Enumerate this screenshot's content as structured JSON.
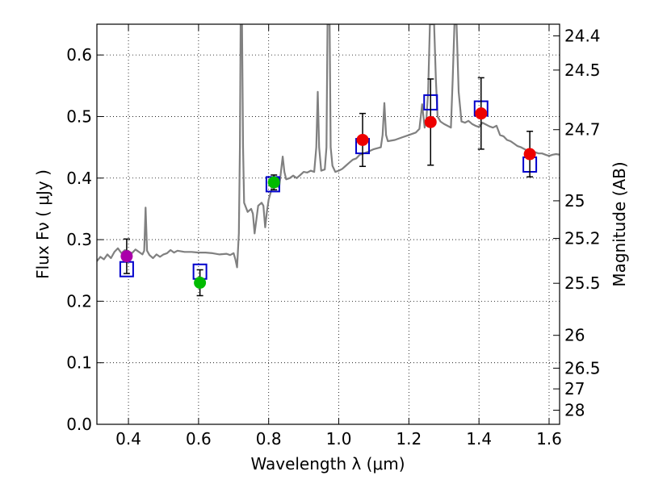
{
  "chart_data": {
    "type": "scatter",
    "xlabel": "Wavelength  λ (μm)",
    "ylabel": "Flux  Fν  ( μJy )",
    "y2label": "Magnitude (AB)",
    "xlim": [
      0.31,
      1.63
    ],
    "ylim": [
      0.0,
      0.65
    ],
    "grid": true,
    "x_ticks": [
      0.4,
      0.6,
      0.8,
      1.0,
      1.2,
      1.4,
      1.6
    ],
    "x_tick_labels": [
      "0.4",
      "0.6",
      "0.8",
      "1.0",
      "1.2",
      "1.4",
      "1.6"
    ],
    "y_ticks": [
      0.0,
      0.1,
      0.2,
      0.3,
      0.4,
      0.5,
      0.6
    ],
    "y_tick_labels": [
      "0.0",
      "0.1",
      "0.2",
      "0.3",
      "0.4",
      "0.5",
      "0.6"
    ],
    "mag_ticks": [
      24.4,
      24.5,
      24.7,
      25,
      25.2,
      25.5,
      26,
      26.5,
      27,
      28
    ],
    "mag_tick_labels": [
      "24.4",
      "24.5",
      "24.7",
      "25",
      "25.2",
      "25.5",
      "26",
      "26.5",
      "27",
      "28"
    ],
    "colors": {
      "template": "#808080",
      "model": "#0000cc",
      "purple": "#aa00aa",
      "green": "#00bb00",
      "red": "#ee0000",
      "errorbar": "#000000"
    },
    "template_spectrum": [
      [
        0.31,
        0.265
      ],
      [
        0.32,
        0.272
      ],
      [
        0.33,
        0.268
      ],
      [
        0.34,
        0.276
      ],
      [
        0.35,
        0.27
      ],
      [
        0.36,
        0.28
      ],
      [
        0.37,
        0.286
      ],
      [
        0.38,
        0.278
      ],
      [
        0.39,
        0.283
      ],
      [
        0.4,
        0.281
      ],
      [
        0.41,
        0.278
      ],
      [
        0.42,
        0.284
      ],
      [
        0.43,
        0.28
      ],
      [
        0.44,
        0.276
      ],
      [
        0.445,
        0.282
      ],
      [
        0.449,
        0.352
      ],
      [
        0.453,
        0.282
      ],
      [
        0.46,
        0.275
      ],
      [
        0.47,
        0.27
      ],
      [
        0.48,
        0.276
      ],
      [
        0.49,
        0.272
      ],
      [
        0.5,
        0.276
      ],
      [
        0.51,
        0.278
      ],
      [
        0.52,
        0.283
      ],
      [
        0.53,
        0.279
      ],
      [
        0.54,
        0.282
      ],
      [
        0.55,
        0.281
      ],
      [
        0.56,
        0.28
      ],
      [
        0.58,
        0.28
      ],
      [
        0.6,
        0.279
      ],
      [
        0.62,
        0.279
      ],
      [
        0.64,
        0.278
      ],
      [
        0.66,
        0.276
      ],
      [
        0.68,
        0.277
      ],
      [
        0.69,
        0.275
      ],
      [
        0.7,
        0.278
      ],
      [
        0.705,
        0.268
      ],
      [
        0.71,
        0.255
      ],
      [
        0.715,
        0.31
      ],
      [
        0.718,
        0.45
      ],
      [
        0.72,
        0.65
      ],
      [
        0.724,
        0.65
      ],
      [
        0.727,
        0.45
      ],
      [
        0.73,
        0.36
      ],
      [
        0.74,
        0.345
      ],
      [
        0.75,
        0.35
      ],
      [
        0.755,
        0.342
      ],
      [
        0.76,
        0.31
      ],
      [
        0.77,
        0.355
      ],
      [
        0.78,
        0.36
      ],
      [
        0.785,
        0.355
      ],
      [
        0.79,
        0.32
      ],
      [
        0.795,
        0.345
      ],
      [
        0.8,
        0.365
      ],
      [
        0.81,
        0.385
      ],
      [
        0.82,
        0.388
      ],
      [
        0.83,
        0.385
      ],
      [
        0.835,
        0.41
      ],
      [
        0.84,
        0.435
      ],
      [
        0.845,
        0.41
      ],
      [
        0.85,
        0.398
      ],
      [
        0.86,
        0.4
      ],
      [
        0.87,
        0.404
      ],
      [
        0.88,
        0.4
      ],
      [
        0.89,
        0.405
      ],
      [
        0.9,
        0.41
      ],
      [
        0.91,
        0.409
      ],
      [
        0.92,
        0.412
      ],
      [
        0.93,
        0.41
      ],
      [
        0.936,
        0.45
      ],
      [
        0.94,
        0.54
      ],
      [
        0.944,
        0.45
      ],
      [
        0.95,
        0.412
      ],
      [
        0.96,
        0.414
      ],
      [
        0.965,
        0.45
      ],
      [
        0.968,
        0.65
      ],
      [
        0.974,
        0.65
      ],
      [
        0.977,
        0.45
      ],
      [
        0.982,
        0.42
      ],
      [
        0.99,
        0.41
      ],
      [
        1.0,
        0.412
      ],
      [
        1.01,
        0.415
      ],
      [
        1.02,
        0.42
      ],
      [
        1.03,
        0.425
      ],
      [
        1.04,
        0.43
      ],
      [
        1.05,
        0.432
      ],
      [
        1.06,
        0.438
      ],
      [
        1.08,
        0.442
      ],
      [
        1.1,
        0.447
      ],
      [
        1.12,
        0.45
      ],
      [
        1.125,
        0.47
      ],
      [
        1.13,
        0.522
      ],
      [
        1.135,
        0.47
      ],
      [
        1.14,
        0.46
      ],
      [
        1.16,
        0.462
      ],
      [
        1.18,
        0.466
      ],
      [
        1.2,
        0.47
      ],
      [
        1.22,
        0.474
      ],
      [
        1.23,
        0.48
      ],
      [
        1.238,
        0.52
      ],
      [
        1.245,
        0.482
      ],
      [
        1.25,
        0.495
      ],
      [
        1.255,
        0.54
      ],
      [
        1.26,
        0.65
      ],
      [
        1.272,
        0.65
      ],
      [
        1.277,
        0.56
      ],
      [
        1.282,
        0.5
      ],
      [
        1.29,
        0.492
      ],
      [
        1.3,
        0.488
      ],
      [
        1.31,
        0.485
      ],
      [
        1.32,
        0.482
      ],
      [
        1.325,
        0.56
      ],
      [
        1.33,
        0.65
      ],
      [
        1.336,
        0.65
      ],
      [
        1.342,
        0.54
      ],
      [
        1.35,
        0.492
      ],
      [
        1.36,
        0.49
      ],
      [
        1.37,
        0.493
      ],
      [
        1.38,
        0.488
      ],
      [
        1.39,
        0.485
      ],
      [
        1.4,
        0.483
      ],
      [
        1.41,
        0.49
      ],
      [
        1.42,
        0.487
      ],
      [
        1.43,
        0.484
      ],
      [
        1.44,
        0.482
      ],
      [
        1.45,
        0.485
      ],
      [
        1.46,
        0.47
      ],
      [
        1.47,
        0.468
      ],
      [
        1.48,
        0.462
      ],
      [
        1.49,
        0.46
      ],
      [
        1.5,
        0.456
      ],
      [
        1.51,
        0.452
      ],
      [
        1.52,
        0.45
      ],
      [
        1.53,
        0.447
      ],
      [
        1.54,
        0.444
      ],
      [
        1.55,
        0.443
      ],
      [
        1.56,
        0.442
      ],
      [
        1.57,
        0.44
      ],
      [
        1.58,
        0.44
      ],
      [
        1.59,
        0.438
      ],
      [
        1.6,
        0.436
      ],
      [
        1.61,
        0.438
      ],
      [
        1.62,
        0.439
      ],
      [
        1.63,
        0.438
      ]
    ],
    "model_photometry": [
      {
        "x": 0.395,
        "y": 0.252
      },
      {
        "x": 0.604,
        "y": 0.248
      },
      {
        "x": 0.812,
        "y": 0.39
      },
      {
        "x": 1.068,
        "y": 0.452
      },
      {
        "x": 1.262,
        "y": 0.523
      },
      {
        "x": 1.406,
        "y": 0.513
      },
      {
        "x": 1.545,
        "y": 0.422
      }
    ],
    "observed_photometry": [
      {
        "x": 0.395,
        "y": 0.273,
        "err": 0.028,
        "color": "purple"
      },
      {
        "x": 0.604,
        "y": 0.23,
        "err": 0.021,
        "color": "green"
      },
      {
        "x": 0.815,
        "y": 0.393,
        "err": 0.012,
        "color": "green"
      },
      {
        "x": 1.068,
        "y": 0.462,
        "err": 0.043,
        "color": "red"
      },
      {
        "x": 1.262,
        "y": 0.491,
        "err": 0.07,
        "color": "red"
      },
      {
        "x": 1.406,
        "y": 0.505,
        "err": 0.058,
        "color": "red"
      },
      {
        "x": 1.545,
        "y": 0.439,
        "err": 0.037,
        "color": "red"
      }
    ]
  }
}
